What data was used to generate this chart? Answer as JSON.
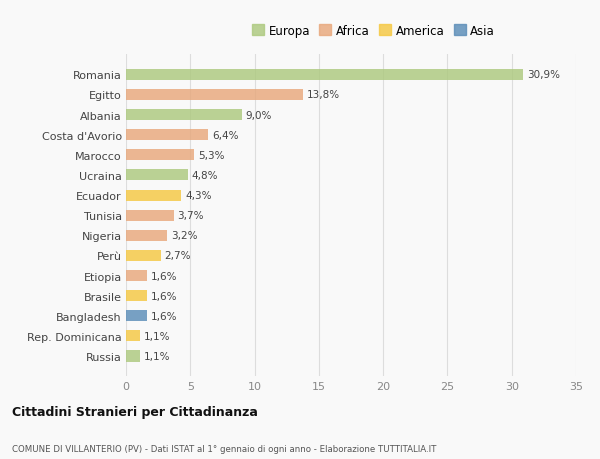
{
  "countries": [
    "Romania",
    "Egitto",
    "Albania",
    "Costa d'Avorio",
    "Marocco",
    "Ucraina",
    "Ecuador",
    "Tunisia",
    "Nigeria",
    "Perù",
    "Etiopia",
    "Brasile",
    "Bangladesh",
    "Rep. Dominicana",
    "Russia"
  ],
  "values": [
    30.9,
    13.8,
    9.0,
    6.4,
    5.3,
    4.8,
    4.3,
    3.7,
    3.2,
    2.7,
    1.6,
    1.6,
    1.6,
    1.1,
    1.1
  ],
  "labels": [
    "30,9%",
    "13,8%",
    "9,0%",
    "6,4%",
    "5,3%",
    "4,8%",
    "4,3%",
    "3,7%",
    "3,2%",
    "2,7%",
    "1,6%",
    "1,6%",
    "1,6%",
    "1,1%",
    "1,1%"
  ],
  "colors": [
    "#adc97e",
    "#e8a87c",
    "#adc97e",
    "#e8a87c",
    "#e8a87c",
    "#adc97e",
    "#f5c842",
    "#e8a87c",
    "#e8a87c",
    "#f5c842",
    "#e8a87c",
    "#f5c842",
    "#5b8db8",
    "#f5c842",
    "#adc97e"
  ],
  "legend_labels": [
    "Europa",
    "Africa",
    "America",
    "Asia"
  ],
  "legend_colors": [
    "#adc97e",
    "#e8a87c",
    "#f5c842",
    "#5b8db8"
  ],
  "title": "Cittadini Stranieri per Cittadinanza",
  "subtitle": "COMUNE DI VILLANTERIO (PV) - Dati ISTAT al 1° gennaio di ogni anno - Elaborazione TUTTITALIA.IT",
  "xlim": [
    0,
    35
  ],
  "xticks": [
    0,
    5,
    10,
    15,
    20,
    25,
    30,
    35
  ],
  "background_color": "#f9f9f9",
  "grid_color": "#dddddd",
  "bar_alpha": 0.82,
  "bar_height": 0.55
}
